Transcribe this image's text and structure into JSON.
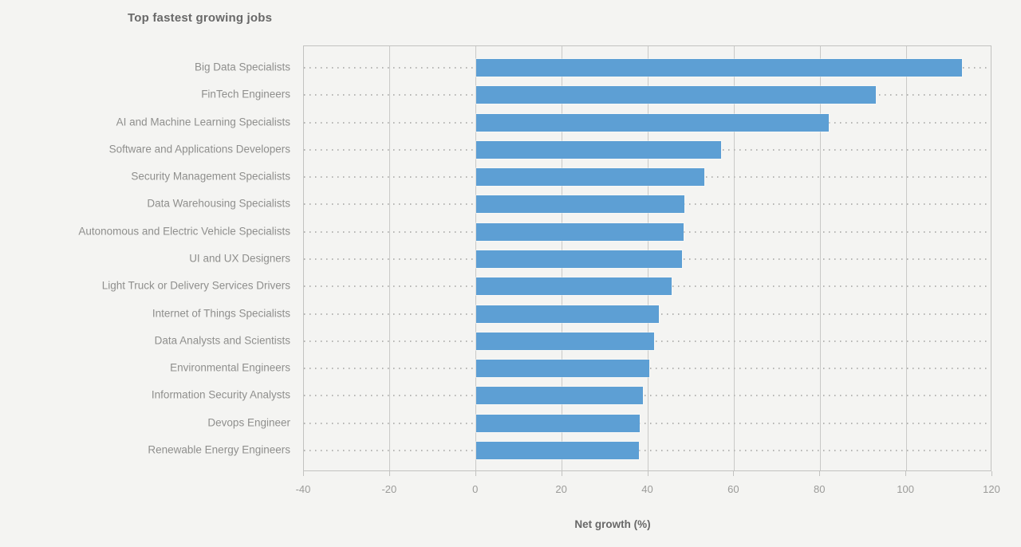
{
  "colors": {
    "background": "#f4f4f2",
    "bar": "#5d9fd4",
    "gridline": "#c9c9c7",
    "plot_border": "#c2c2c0",
    "dotted_line": "#b4b4b2",
    "title_text": "#686868",
    "label_text": "#8f8f8d",
    "tick_text": "#9b9b99"
  },
  "chart_data": {
    "type": "bar",
    "orientation": "horizontal",
    "title": "Top fastest growing jobs",
    "xlabel": "Net growth (%)",
    "ylabel": "",
    "xlim": [
      -40,
      120
    ],
    "xticks": [
      -40,
      -20,
      0,
      20,
      40,
      60,
      80,
      100,
      120
    ],
    "grid": "vertical-solid-plus-dotted-row-guides",
    "legend": "none",
    "categories": [
      "Big Data Specialists",
      "FinTech Engineers",
      "AI and Machine Learning Specialists",
      "Software and Applications Developers",
      "Security Management Specialists",
      "Data Warehousing Specialists",
      "Autonomous and Electric Vehicle Specialists",
      "UI and UX Designers",
      "Light Truck or Delivery Services Drivers",
      "Internet of Things Specialists",
      "Data Analysts and Scientists",
      "Environmental Engineers",
      "Information Security Analysts",
      "Devops Engineer",
      "Renewable Energy Engineers"
    ],
    "values": [
      113,
      93,
      82,
      57,
      53,
      48.5,
      48.2,
      47.8,
      45.5,
      42.5,
      41.4,
      40.2,
      38.8,
      38,
      37.8
    ]
  }
}
